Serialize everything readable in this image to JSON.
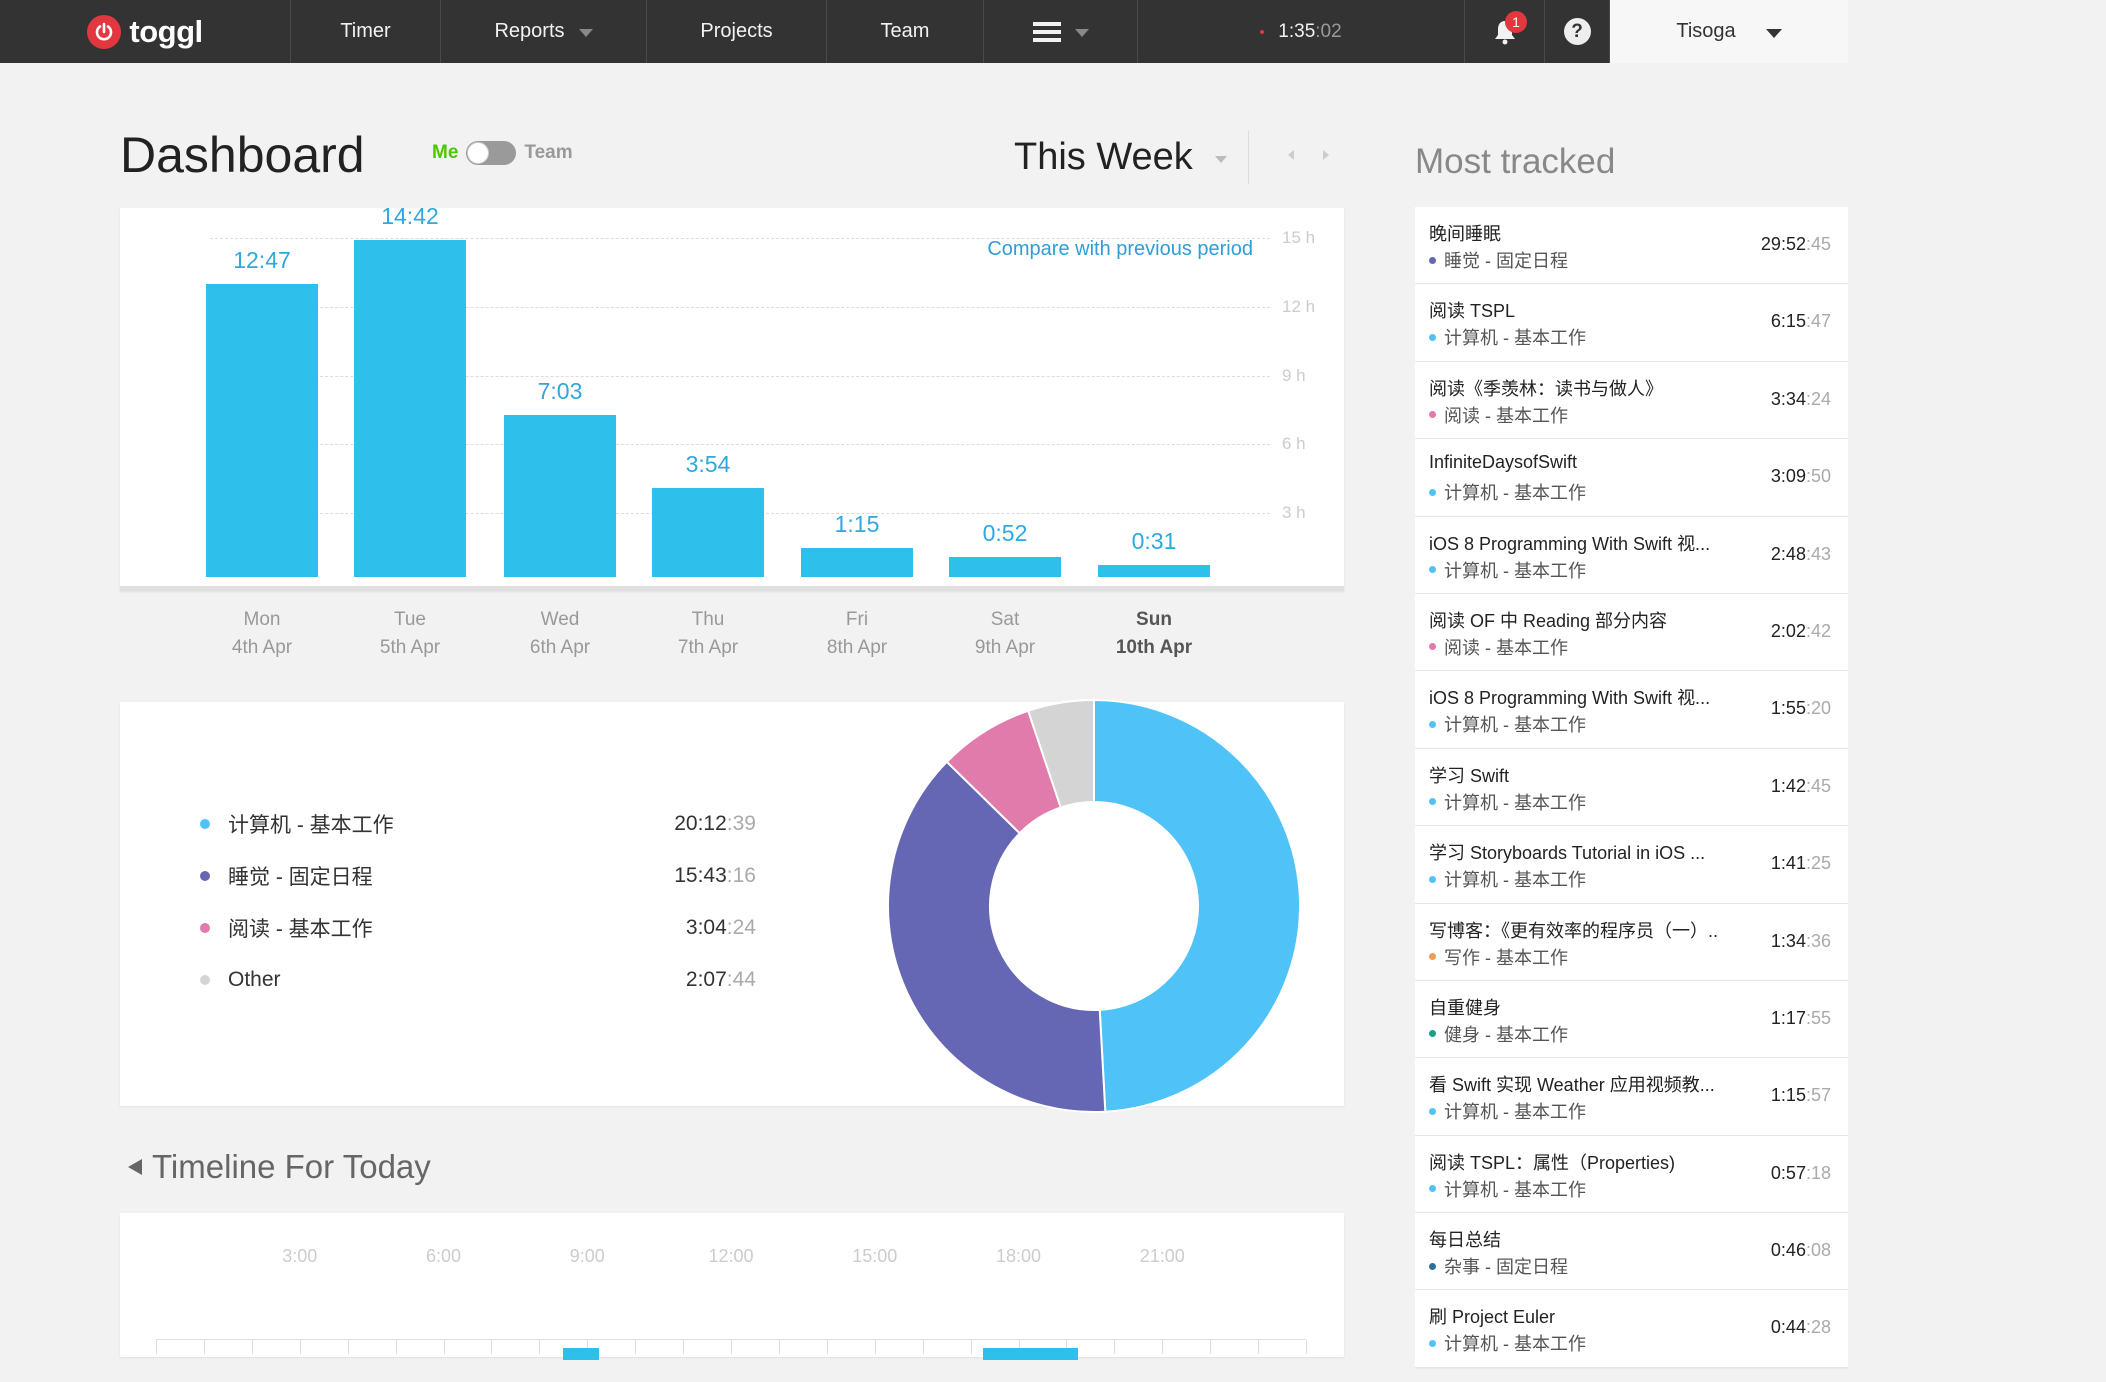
{
  "nav": {
    "logo_text": "toggl",
    "items": [
      {
        "label": "Timer"
      },
      {
        "label": "Reports"
      },
      {
        "label": "Projects"
      },
      {
        "label": "Team"
      }
    ],
    "running_timer": {
      "hm": "1:35",
      "sec": ":02"
    },
    "notification_count": "1",
    "help_glyph": "?",
    "user_name": "Tisoga"
  },
  "header": {
    "title": "Dashboard",
    "toggle_me": "Me",
    "toggle_team": "Team",
    "toggle_state": "Me",
    "period": "This Week"
  },
  "bar_chart": {
    "compare_link": "Compare with previous period",
    "y_ticks": [
      "15 h",
      "12 h",
      "9 h",
      "6 h",
      "3 h"
    ],
    "days": [
      {
        "day": "Mon",
        "date": "4th Apr",
        "label": "12:47"
      },
      {
        "day": "Tue",
        "date": "5th Apr",
        "label": "14:42"
      },
      {
        "day": "Wed",
        "date": "6th Apr",
        "label": "7:03"
      },
      {
        "day": "Thu",
        "date": "7th Apr",
        "label": "3:54"
      },
      {
        "day": "Fri",
        "date": "8th Apr",
        "label": "1:15"
      },
      {
        "day": "Sat",
        "date": "9th Apr",
        "label": "0:52"
      },
      {
        "day": "Sun",
        "date": "10th Apr",
        "label": "0:31"
      }
    ]
  },
  "chart_data": [
    {
      "type": "bar",
      "categories": [
        "Mon 4th Apr",
        "Tue 5th Apr",
        "Wed 6th Apr",
        "Thu 7th Apr",
        "Fri 8th Apr",
        "Sat 9th Apr",
        "Sun 10th Apr"
      ],
      "values": [
        12.78,
        14.7,
        7.05,
        3.9,
        1.25,
        0.87,
        0.52
      ],
      "data_labels": [
        "12:47",
        "14:42",
        "7:03",
        "3:54",
        "1:15",
        "0:52",
        "0:31"
      ],
      "title": "",
      "xlabel": "",
      "ylabel": "",
      "ylim": [
        0,
        15
      ],
      "y_ticks": [
        "15 h",
        "12 h",
        "9 h",
        "6 h",
        "3 h"
      ],
      "grid": true,
      "color": "#2ec0ea"
    },
    {
      "type": "pie",
      "categories": [
        "计算机 - 基本工作",
        "睡觉 - 固定日程",
        "阅读 - 基本工作",
        "Other"
      ],
      "values": [
        20.21,
        15.72,
        3.08,
        2.13
      ],
      "data_labels": [
        "20:12:39",
        "15:43:16",
        "3:04:24",
        "2:07:44"
      ],
      "colors": [
        "#4fc3f7",
        "#6667b4",
        "#e07bab",
        "#d4d4d4"
      ],
      "donut": true
    }
  ],
  "breakdown": {
    "rows": [
      {
        "label": "计算机 - 基本工作",
        "hm": "20:12",
        "sec": ":39",
        "color": "#4fc3f7"
      },
      {
        "label": "睡觉 - 固定日程",
        "hm": "15:43",
        "sec": ":16",
        "color": "#6667b4"
      },
      {
        "label": "阅读 - 基本工作",
        "hm": "3:04",
        "sec": ":24",
        "color": "#e07bab"
      },
      {
        "label": "Other",
        "hm": "2:07",
        "sec": ":44",
        "color": "#d4d4d4"
      }
    ]
  },
  "timeline": {
    "title": "Timeline For Today",
    "hours": [
      "3:00",
      "6:00",
      "9:00",
      "12:00",
      "15:00",
      "18:00",
      "21:00"
    ]
  },
  "most_tracked": {
    "title": "Most tracked",
    "items": [
      {
        "name": "晚间睡眠",
        "project": "睡觉 - 固定日程",
        "color": "#6667b4",
        "hm": "29:52",
        "sec": ":45"
      },
      {
        "name": "阅读 TSPL",
        "project": "计算机 - 基本工作",
        "color": "#4fc3f7",
        "hm": "6:15",
        "sec": ":47"
      },
      {
        "name": "阅读《季羡林：读书与做人》",
        "project": "阅读 - 基本工作",
        "color": "#e07bab",
        "hm": "3:34",
        "sec": ":24"
      },
      {
        "name": "InfiniteDaysofSwift",
        "project": "计算机 - 基本工作",
        "color": "#4fc3f7",
        "hm": "3:09",
        "sec": ":50"
      },
      {
        "name": "iOS 8 Programming With Swift 视...",
        "project": "计算机 - 基本工作",
        "color": "#4fc3f7",
        "hm": "2:48",
        "sec": ":43"
      },
      {
        "name": "阅读 OF 中 Reading 部分内容",
        "project": "阅读 - 基本工作",
        "color": "#e07bab",
        "hm": "2:02",
        "sec": ":42"
      },
      {
        "name": "iOS 8 Programming With Swift 视...",
        "project": "计算机 - 基本工作",
        "color": "#4fc3f7",
        "hm": "1:55",
        "sec": ":20"
      },
      {
        "name": "学习 Swift",
        "project": "计算机 - 基本工作",
        "color": "#4fc3f7",
        "hm": "1:42",
        "sec": ":45"
      },
      {
        "name": "学习 Storyboards Tutorial in iOS ...",
        "project": "计算机 - 基本工作",
        "color": "#4fc3f7",
        "hm": "1:41",
        "sec": ":25"
      },
      {
        "name": "写博客：《更有效率的程序员（一）..",
        "project": "写作 - 基本工作",
        "color": "#f39c4e",
        "hm": "1:34",
        "sec": ":36"
      },
      {
        "name": "自重健身",
        "project": "健身 - 基本工作",
        "color": "#16a085",
        "hm": "1:17",
        "sec": ":55"
      },
      {
        "name": "看 Swift 实现 Weather 应用视频教...",
        "project": "计算机 - 基本工作",
        "color": "#4fc3f7",
        "hm": "1:15",
        "sec": ":57"
      },
      {
        "name": "阅读 TSPL：属性（Properties)",
        "project": "计算机 - 基本工作",
        "color": "#4fc3f7",
        "hm": "0:57",
        "sec": ":18"
      },
      {
        "name": "每日总结",
        "project": "杂事 - 固定日程",
        "color": "#2c6e9e",
        "hm": "0:46",
        "sec": ":08"
      },
      {
        "name": "刷 Project Euler",
        "project": "计算机 - 基本工作",
        "color": "#4fc3f7",
        "hm": "0:44",
        "sec": ":28"
      }
    ]
  }
}
